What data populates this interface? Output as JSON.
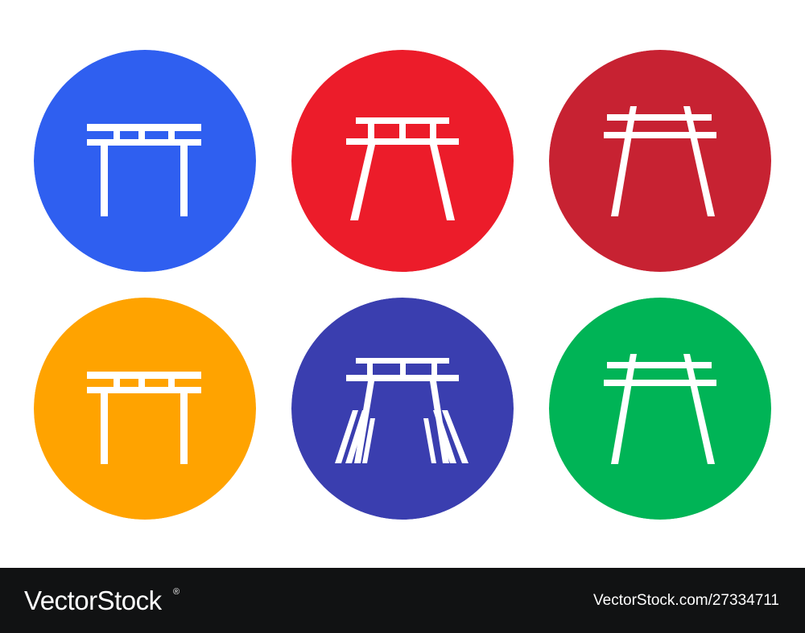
{
  "icons": [
    {
      "name": "torii-gate-straight-icon",
      "color": "#2f5ff0",
      "style": "straight"
    },
    {
      "name": "torii-gate-perspective-icon",
      "color": "#ec1c2a",
      "style": "perspective"
    },
    {
      "name": "torii-gate-perspective-tall-icon",
      "color": "#c72232",
      "style": "perspective-tall"
    },
    {
      "name": "torii-gate-straight-icon",
      "color": "#ffa300",
      "style": "straight"
    },
    {
      "name": "torii-gate-path-icon",
      "color": "#3a3eaf",
      "style": "path"
    },
    {
      "name": "torii-gate-perspective-tall-icon",
      "color": "#00b456",
      "style": "perspective-tall"
    }
  ],
  "watermark": {
    "brand": "VectorStock",
    "image_id": "VectorStock.com/27334711",
    "background": "#111213",
    "text_color": "#ffffff"
  }
}
